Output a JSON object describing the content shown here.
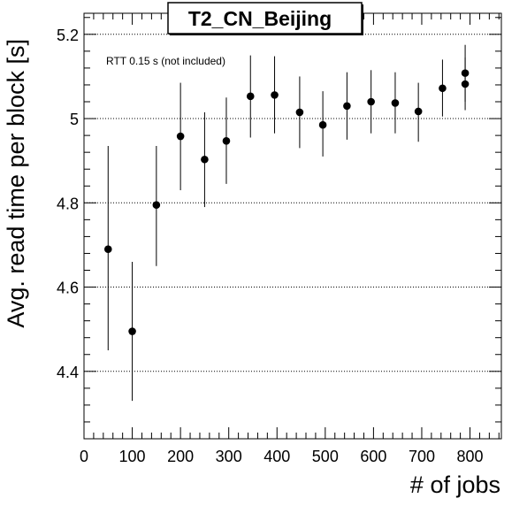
{
  "chart_data": {
    "type": "scatter",
    "title": "T2_CN_Beijing",
    "annotation": "RTT 0.15 s (not included)",
    "xlabel": "# of jobs",
    "ylabel": "Avg. read time per block [s]",
    "xlim": [
      0,
      865
    ],
    "ylim": [
      4.24,
      5.25
    ],
    "x_ticks": [
      0,
      100,
      200,
      300,
      400,
      500,
      600,
      700,
      800
    ],
    "y_ticks": [
      4.4,
      4.6,
      4.8,
      5,
      5.2
    ],
    "y_tick_labels": [
      "4.4",
      "4.6",
      "4.8",
      "5",
      "5.2"
    ],
    "grid": {
      "x": false,
      "y": true,
      "style": "dotted"
    },
    "colors": {
      "marker": "#000000",
      "errorbar": "#000000",
      "frame": "#000000",
      "grid": "#000000"
    },
    "series": [
      {
        "points": [
          {
            "x": 50,
            "y": 4.69,
            "ylo": 4.45,
            "yhi": 4.935
          },
          {
            "x": 100,
            "y": 4.495,
            "ylo": 4.33,
            "yhi": 4.66
          },
          {
            "x": 150,
            "y": 4.795,
            "ylo": 4.65,
            "yhi": 4.935
          },
          {
            "x": 200,
            "y": 4.958,
            "ylo": 4.83,
            "yhi": 5.085
          },
          {
            "x": 250,
            "y": 4.903,
            "ylo": 4.79,
            "yhi": 5.015
          },
          {
            "x": 295,
            "y": 4.947,
            "ylo": 4.845,
            "yhi": 5.05
          },
          {
            "x": 345,
            "y": 5.053,
            "ylo": 4.955,
            "yhi": 5.15
          },
          {
            "x": 395,
            "y": 5.056,
            "ylo": 4.965,
            "yhi": 5.148
          },
          {
            "x": 447,
            "y": 5.015,
            "ylo": 4.93,
            "yhi": 5.1
          },
          {
            "x": 495,
            "y": 4.985,
            "ylo": 4.91,
            "yhi": 5.065
          },
          {
            "x": 545,
            "y": 5.03,
            "ylo": 4.95,
            "yhi": 5.11
          },
          {
            "x": 595,
            "y": 5.04,
            "ylo": 4.965,
            "yhi": 5.115
          },
          {
            "x": 645,
            "y": 5.037,
            "ylo": 4.965,
            "yhi": 5.11
          },
          {
            "x": 693,
            "y": 5.017,
            "ylo": 4.945,
            "yhi": 5.085
          },
          {
            "x": 743,
            "y": 5.072,
            "ylo": 5.005,
            "yhi": 5.14
          },
          {
            "x": 790,
            "y": 5.108,
            "ylo": 5.04,
            "yhi": 5.175
          },
          {
            "x": 790,
            "y": 5.082,
            "ylo": 5.02,
            "yhi": 5.145
          }
        ]
      }
    ]
  }
}
